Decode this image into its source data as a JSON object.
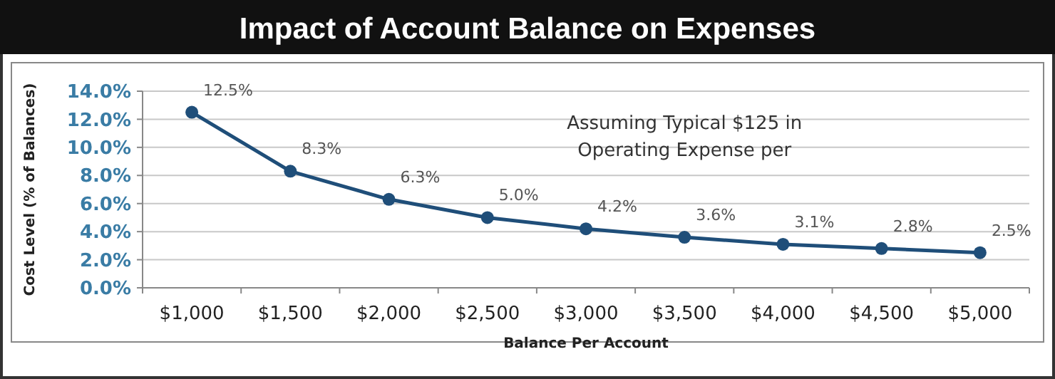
{
  "chart_data": {
    "type": "line",
    "title": "Impact of Account Balance on Expenses",
    "xlabel": "Balance Per Account",
    "ylabel": "Cost Level (% of Balances)",
    "categories": [
      "$1,000",
      "$1,500",
      "$2,000",
      "$2,500",
      "$3,000",
      "$3,500",
      "$4,000",
      "$4,500",
      "$5,000"
    ],
    "series": [
      {
        "color": "#1f4e79",
        "values": [
          12.5,
          8.3,
          6.3,
          5.0,
          4.2,
          3.6,
          3.1,
          2.8,
          2.5
        ],
        "value_labels": [
          "12.5%",
          "8.3%",
          "6.3%",
          "5.0%",
          "4.2%",
          "3.6%",
          "3.1%",
          "2.8%",
          "2.5%"
        ]
      }
    ],
    "ylim": [
      0,
      14
    ],
    "yticks": [
      {
        "value": 0,
        "label": "0.0%"
      },
      {
        "value": 2,
        "label": "2.0%"
      },
      {
        "value": 4,
        "label": "4.0%"
      },
      {
        "value": 6,
        "label": "6.0%"
      },
      {
        "value": 8,
        "label": "8.0%"
      },
      {
        "value": 10,
        "label": "10.0%"
      },
      {
        "value": 12,
        "label": "12.0%"
      },
      {
        "value": 14,
        "label": "14.0%"
      }
    ],
    "grid": "y",
    "marker": "circle",
    "line_style": "solid",
    "annotations": [
      "Assuming Typical $125 in\nOperating Expense per"
    ]
  }
}
